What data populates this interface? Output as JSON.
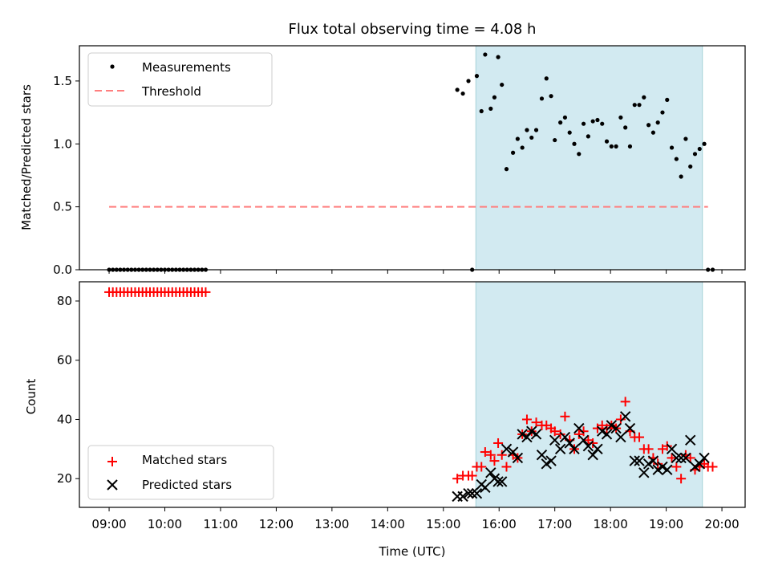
{
  "chart_data": [
    {
      "type": "scatter",
      "title": "Flux total observing time = 4.08 h",
      "ylabel": "Matched/Predicted stars",
      "ylim": [
        0,
        1.78
      ],
      "yticks": [
        "0.0",
        "0.5",
        "1.0",
        "1.5"
      ],
      "shaded_region": {
        "start": "15:35",
        "end": "19:39",
        "color": "#add8e6"
      },
      "legend": {
        "placement": "top-left",
        "entries": [
          "Measurements",
          "Threshold"
        ]
      },
      "threshold": {
        "name": "Threshold",
        "value": 0.5,
        "x_start": "09:00",
        "x_end": "19:45",
        "color": "#ff7f7f",
        "style": "dashed"
      },
      "series": [
        {
          "name": "Measurements",
          "color": "#000000",
          "points": [
            [
              "09:00",
              0
            ],
            [
              "09:04",
              0
            ],
            [
              "09:08",
              0
            ],
            [
              "09:12",
              0
            ],
            [
              "09:16",
              0
            ],
            [
              "09:20",
              0
            ],
            [
              "09:24",
              0
            ],
            [
              "09:28",
              0
            ],
            [
              "09:32",
              0
            ],
            [
              "09:36",
              0
            ],
            [
              "09:40",
              0
            ],
            [
              "09:44",
              0
            ],
            [
              "09:48",
              0
            ],
            [
              "09:52",
              0
            ],
            [
              "09:56",
              0
            ],
            [
              "10:00",
              0
            ],
            [
              "10:04",
              0
            ],
            [
              "10:08",
              0
            ],
            [
              "10:12",
              0
            ],
            [
              "10:16",
              0
            ],
            [
              "10:20",
              0
            ],
            [
              "10:24",
              0
            ],
            [
              "10:28",
              0
            ],
            [
              "10:32",
              0
            ],
            [
              "10:36",
              0
            ],
            [
              "10:40",
              0
            ],
            [
              "10:44",
              0
            ],
            [
              "15:15",
              1.43
            ],
            [
              "15:21",
              1.4
            ],
            [
              "15:27",
              1.5
            ],
            [
              "15:31",
              0
            ],
            [
              "15:36",
              1.54
            ],
            [
              "15:41",
              1.26
            ],
            [
              "15:45",
              1.71
            ],
            [
              "15:51",
              1.28
            ],
            [
              "15:55",
              1.37
            ],
            [
              "15:59",
              1.69
            ],
            [
              "16:03",
              1.47
            ],
            [
              "16:08",
              0.8
            ],
            [
              "16:15",
              0.93
            ],
            [
              "16:20",
              1.04
            ],
            [
              "16:25",
              0.97
            ],
            [
              "16:30",
              1.11
            ],
            [
              "16:35",
              1.05
            ],
            [
              "16:40",
              1.11
            ],
            [
              "16:46",
              1.36
            ],
            [
              "16:51",
              1.52
            ],
            [
              "16:56",
              1.38
            ],
            [
              "17:00",
              1.03
            ],
            [
              "17:06",
              1.17
            ],
            [
              "17:11",
              1.21
            ],
            [
              "17:16",
              1.09
            ],
            [
              "17:21",
              1.0
            ],
            [
              "17:26",
              0.92
            ],
            [
              "17:31",
              1.16
            ],
            [
              "17:36",
              1.06
            ],
            [
              "17:41",
              1.18
            ],
            [
              "17:46",
              1.19
            ],
            [
              "17:51",
              1.16
            ],
            [
              "17:56",
              1.02
            ],
            [
              "18:01",
              0.98
            ],
            [
              "18:06",
              0.98
            ],
            [
              "18:11",
              1.21
            ],
            [
              "18:16",
              1.13
            ],
            [
              "18:21",
              0.98
            ],
            [
              "18:26",
              1.31
            ],
            [
              "18:31",
              1.31
            ],
            [
              "18:36",
              1.37
            ],
            [
              "18:41",
              1.15
            ],
            [
              "18:46",
              1.09
            ],
            [
              "18:51",
              1.17
            ],
            [
              "18:56",
              1.25
            ],
            [
              "19:01",
              1.35
            ],
            [
              "19:06",
              0.97
            ],
            [
              "19:11",
              0.88
            ],
            [
              "19:16",
              0.74
            ],
            [
              "19:21",
              1.04
            ],
            [
              "19:26",
              0.82
            ],
            [
              "19:31",
              0.92
            ],
            [
              "19:36",
              0.96
            ],
            [
              "19:41",
              1.0
            ],
            [
              "19:45",
              0
            ],
            [
              "19:50",
              0
            ]
          ]
        }
      ]
    },
    {
      "type": "scatter",
      "xlabel": "Time (UTC)",
      "ylabel": "Count",
      "ylim": [
        10.3,
        86.5
      ],
      "yticks": [
        "20",
        "40",
        "60",
        "80"
      ],
      "xticks": [
        "09:00",
        "10:00",
        "11:00",
        "12:00",
        "13:00",
        "14:00",
        "15:00",
        "16:00",
        "17:00",
        "18:00",
        "19:00",
        "20:00"
      ],
      "shaded_region": {
        "start": "15:35",
        "end": "19:39",
        "color": "#add8e6"
      },
      "legend": {
        "placement": "bottom-left",
        "entries": [
          "Matched stars",
          "Predicted stars"
        ]
      },
      "series": [
        {
          "name": "Matched stars",
          "marker": "plus",
          "color": "#ff0000",
          "points": [
            [
              "09:00",
              83
            ],
            [
              "09:04",
              83
            ],
            [
              "09:08",
              83
            ],
            [
              "09:12",
              83
            ],
            [
              "09:16",
              83
            ],
            [
              "09:20",
              83
            ],
            [
              "09:24",
              83
            ],
            [
              "09:28",
              83
            ],
            [
              "09:32",
              83
            ],
            [
              "09:36",
              83
            ],
            [
              "09:40",
              83
            ],
            [
              "09:44",
              83
            ],
            [
              "09:48",
              83
            ],
            [
              "09:52",
              83
            ],
            [
              "09:56",
              83
            ],
            [
              "10:00",
              83
            ],
            [
              "10:04",
              83
            ],
            [
              "10:08",
              83
            ],
            [
              "10:12",
              83
            ],
            [
              "10:16",
              83
            ],
            [
              "10:20",
              83
            ],
            [
              "10:24",
              83
            ],
            [
              "10:28",
              83
            ],
            [
              "10:32",
              83
            ],
            [
              "10:36",
              83
            ],
            [
              "10:40",
              83
            ],
            [
              "10:44",
              83
            ],
            [
              "15:15",
              20
            ],
            [
              "15:21",
              21
            ],
            [
              "15:27",
              21
            ],
            [
              "15:31",
              21
            ],
            [
              "15:36",
              24
            ],
            [
              "15:41",
              24
            ],
            [
              "15:45",
              29
            ],
            [
              "15:51",
              28
            ],
            [
              "15:55",
              26
            ],
            [
              "15:59",
              32
            ],
            [
              "16:03",
              28
            ],
            [
              "16:08",
              24
            ],
            [
              "16:15",
              28
            ],
            [
              "16:20",
              27
            ],
            [
              "16:25",
              35
            ],
            [
              "16:30",
              40
            ],
            [
              "16:35",
              36
            ],
            [
              "16:40",
              39
            ],
            [
              "16:46",
              38
            ],
            [
              "16:51",
              38
            ],
            [
              "16:56",
              37
            ],
            [
              "17:00",
              36
            ],
            [
              "17:06",
              35
            ],
            [
              "17:11",
              41
            ],
            [
              "17:16",
              33
            ],
            [
              "17:21",
              30
            ],
            [
              "17:26",
              35
            ],
            [
              "17:31",
              36
            ],
            [
              "17:36",
              33
            ],
            [
              "17:41",
              32
            ],
            [
              "17:46",
              37
            ],
            [
              "17:51",
              38
            ],
            [
              "17:56",
              37
            ],
            [
              "18:01",
              38
            ],
            [
              "18:06",
              37
            ],
            [
              "18:11",
              40
            ],
            [
              "18:16",
              46
            ],
            [
              "18:21",
              36
            ],
            [
              "18:26",
              34
            ],
            [
              "18:31",
              34
            ],
            [
              "18:36",
              30
            ],
            [
              "18:41",
              30
            ],
            [
              "18:46",
              27
            ],
            [
              "18:51",
              25
            ],
            [
              "18:56",
              30
            ],
            [
              "19:01",
              31
            ],
            [
              "19:06",
              27
            ],
            [
              "19:11",
              24
            ],
            [
              "19:16",
              20
            ],
            [
              "19:21",
              28
            ],
            [
              "19:26",
              27
            ],
            [
              "19:31",
              23
            ],
            [
              "19:36",
              24
            ],
            [
              "19:41",
              25
            ],
            [
              "19:45",
              24
            ],
            [
              "19:50",
              24
            ]
          ]
        },
        {
          "name": "Predicted stars",
          "marker": "x",
          "color": "#000000",
          "points": [
            [
              "15:15",
              14
            ],
            [
              "15:21",
              14
            ],
            [
              "15:27",
              15
            ],
            [
              "15:31",
              15
            ],
            [
              "15:36",
              15
            ],
            [
              "15:41",
              18
            ],
            [
              "15:45",
              17
            ],
            [
              "15:51",
              22
            ],
            [
              "15:55",
              20
            ],
            [
              "15:59",
              19
            ],
            [
              "16:03",
              19
            ],
            [
              "16:08",
              30
            ],
            [
              "16:15",
              29
            ],
            [
              "16:20",
              27
            ],
            [
              "16:25",
              35
            ],
            [
              "16:30",
              34
            ],
            [
              "16:35",
              36
            ],
            [
              "16:40",
              35
            ],
            [
              "16:46",
              28
            ],
            [
              "16:51",
              25
            ],
            [
              "16:56",
              26
            ],
            [
              "17:00",
              33
            ],
            [
              "17:06",
              30
            ],
            [
              "17:11",
              34
            ],
            [
              "17:16",
              32
            ],
            [
              "17:21",
              30
            ],
            [
              "17:26",
              37
            ],
            [
              "17:31",
              33
            ],
            [
              "17:36",
              31
            ],
            [
              "17:41",
              28
            ],
            [
              "17:46",
              30
            ],
            [
              "17:51",
              36
            ],
            [
              "17:56",
              35
            ],
            [
              "18:01",
              38
            ],
            [
              "18:06",
              37
            ],
            [
              "18:11",
              34
            ],
            [
              "18:16",
              41
            ],
            [
              "18:21",
              37
            ],
            [
              "18:26",
              26
            ],
            [
              "18:31",
              26
            ],
            [
              "18:36",
              22
            ],
            [
              "18:41",
              25
            ],
            [
              "18:46",
              26
            ],
            [
              "18:51",
              23
            ],
            [
              "18:56",
              24
            ],
            [
              "19:01",
              23
            ],
            [
              "19:06",
              30
            ],
            [
              "19:11",
              27
            ],
            [
              "19:16",
              27
            ],
            [
              "19:21",
              27
            ],
            [
              "19:26",
              33
            ],
            [
              "19:31",
              24
            ],
            [
              "19:36",
              25
            ],
            [
              "19:41",
              27
            ]
          ]
        }
      ]
    }
  ]
}
